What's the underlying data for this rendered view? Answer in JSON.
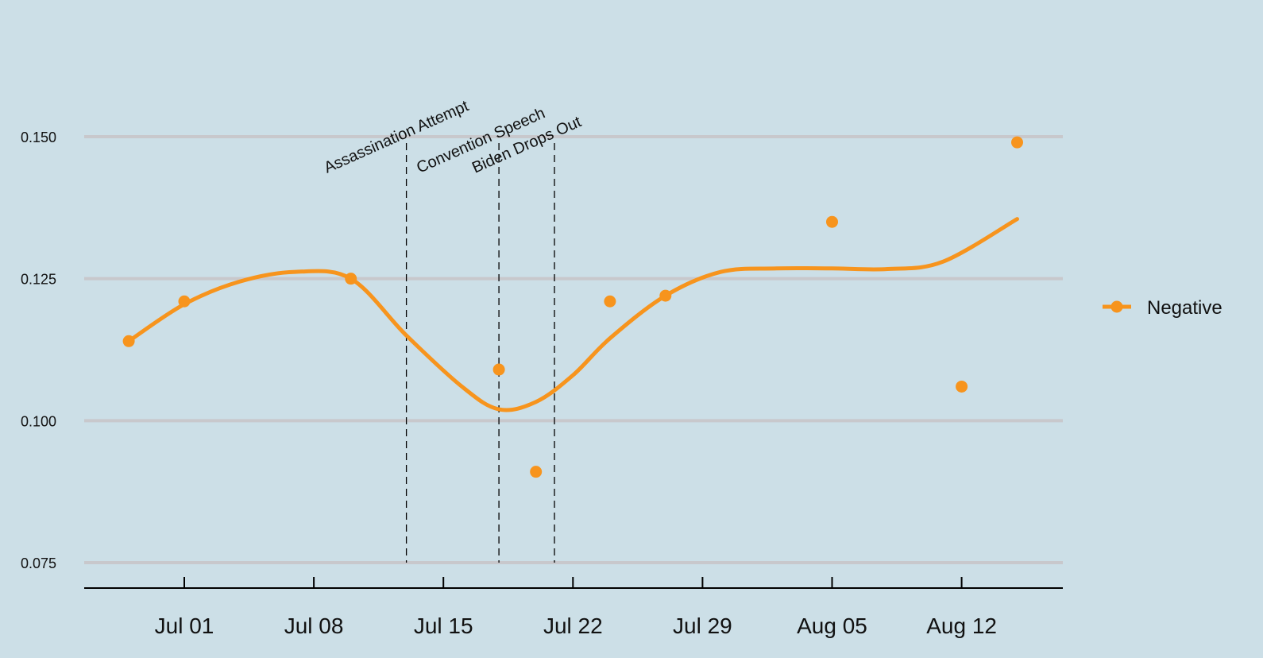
{
  "chart_data": {
    "type": "scatter",
    "title": "",
    "xlabel": "",
    "ylabel": "",
    "ylim": [
      0.075,
      0.15
    ],
    "y_ticks": [
      "0.075",
      "0.100",
      "0.125",
      "0.150"
    ],
    "y_tick_values": [
      0.075,
      0.1,
      0.125,
      0.15
    ],
    "x_ticks": [
      "Jul 01",
      "Jul 08",
      "Jul 15",
      "Jul 22",
      "Jul 29",
      "Aug 05",
      "Aug 12"
    ],
    "x_tick_dates": [
      "2024-07-01",
      "2024-07-08",
      "2024-07-15",
      "2024-07-22",
      "2024-07-29",
      "2024-08-05",
      "2024-08-12"
    ],
    "grid": "horizontal",
    "legend_position": "right",
    "colors": {
      "series": "#f7941d",
      "background": "#ccdfe7",
      "grid": "#c8c8cc",
      "axis": "#000000"
    },
    "events": [
      {
        "label": "Assassination Attempt",
        "date": "2024-07-13"
      },
      {
        "label": "Convention Speech",
        "date": "2024-07-18"
      },
      {
        "label": "Biden Drops Out",
        "date": "2024-07-21"
      }
    ],
    "series": [
      {
        "name": "Negative",
        "marker": "circle",
        "trend": "smooth",
        "points": [
          {
            "date": "2024-06-28",
            "y": 0.114
          },
          {
            "date": "2024-07-01",
            "y": 0.121
          },
          {
            "date": "2024-07-10",
            "y": 0.125
          },
          {
            "date": "2024-07-18",
            "y": 0.109
          },
          {
            "date": "2024-07-20",
            "y": 0.091
          },
          {
            "date": "2024-07-24",
            "y": 0.121
          },
          {
            "date": "2024-07-27",
            "y": 0.122
          },
          {
            "date": "2024-08-05",
            "y": 0.135
          },
          {
            "date": "2024-08-12",
            "y": 0.106
          },
          {
            "date": "2024-08-15",
            "y": 0.149
          }
        ],
        "smooth_fit": [
          {
            "date": "2024-06-28",
            "y": 0.114
          },
          {
            "date": "2024-07-01",
            "y": 0.1205
          },
          {
            "date": "2024-07-04",
            "y": 0.1245
          },
          {
            "date": "2024-07-07",
            "y": 0.1262
          },
          {
            "date": "2024-07-10",
            "y": 0.125
          },
          {
            "date": "2024-07-13",
            "y": 0.115
          },
          {
            "date": "2024-07-16",
            "y": 0.106
          },
          {
            "date": "2024-07-18",
            "y": 0.102
          },
          {
            "date": "2024-07-20",
            "y": 0.1033
          },
          {
            "date": "2024-07-22",
            "y": 0.108
          },
          {
            "date": "2024-07-24",
            "y": 0.1145
          },
          {
            "date": "2024-07-27",
            "y": 0.122
          },
          {
            "date": "2024-07-30",
            "y": 0.1262
          },
          {
            "date": "2024-08-02",
            "y": 0.1268
          },
          {
            "date": "2024-08-05",
            "y": 0.1268
          },
          {
            "date": "2024-08-08",
            "y": 0.1267
          },
          {
            "date": "2024-08-11",
            "y": 0.128
          },
          {
            "date": "2024-08-15",
            "y": 0.1355
          }
        ]
      }
    ]
  }
}
